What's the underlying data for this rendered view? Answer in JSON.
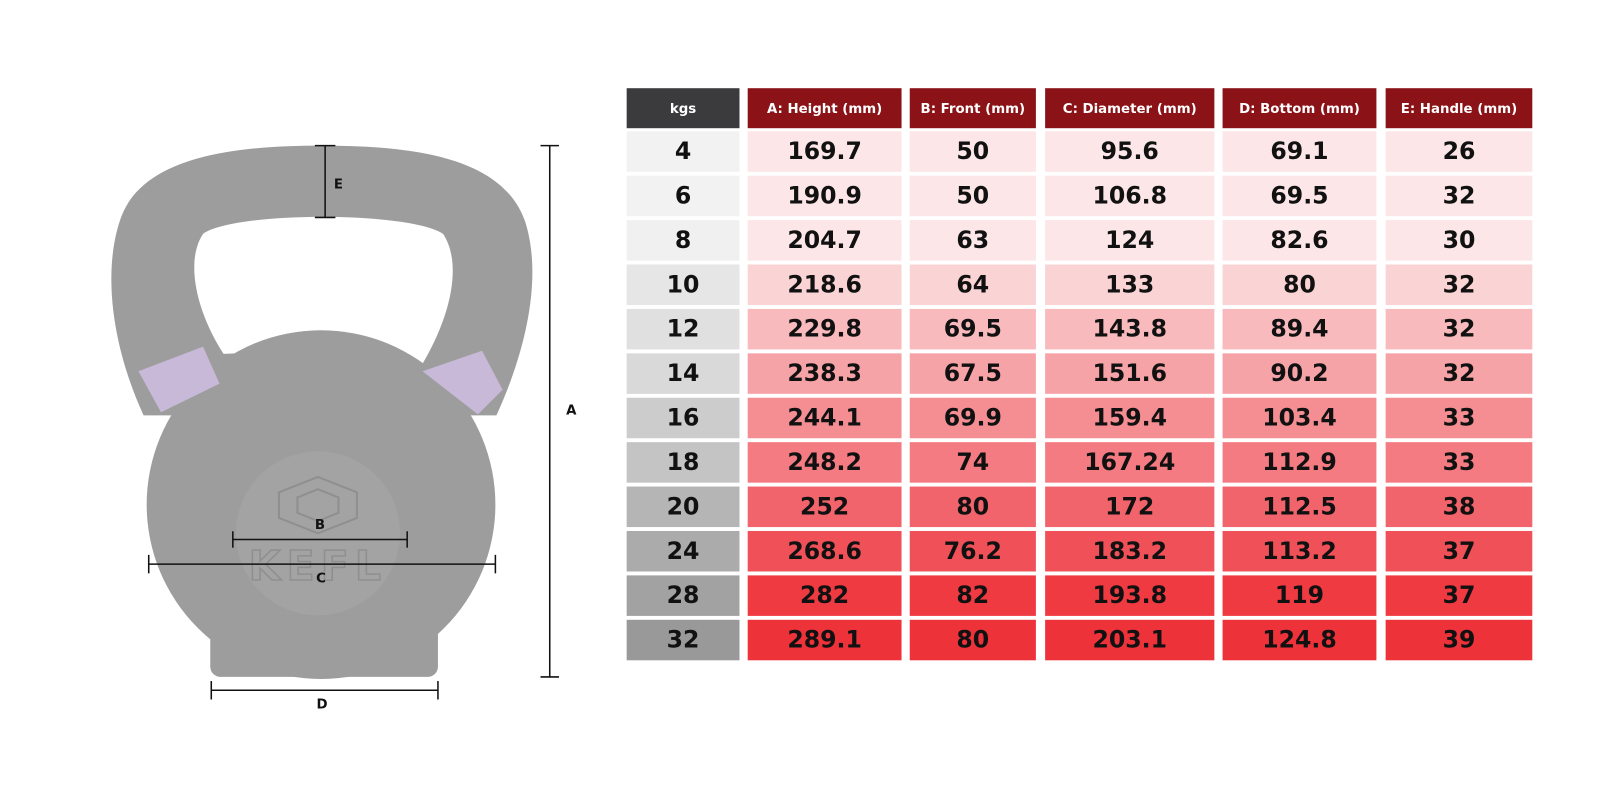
{
  "diagram": {
    "labels": {
      "a": "A",
      "b": "B",
      "c": "C",
      "d": "D",
      "e": "E"
    },
    "watermark": "KEFL"
  },
  "table": {
    "header": [
      "kgs",
      "A: Height (mm)",
      "B: Front (mm)",
      "C: Diameter (mm)",
      "D: Bottom (mm)",
      "E: Handle (mm)"
    ],
    "rows": [
      [
        4,
        169.7,
        50,
        95.6,
        69.1,
        26
      ],
      [
        6,
        190.9,
        50,
        106.8,
        69.5,
        32
      ],
      [
        8,
        204.7,
        63,
        124,
        82.6,
        30
      ],
      [
        10,
        218.6,
        64,
        133,
        80,
        32
      ],
      [
        12,
        229.8,
        69.5,
        143.8,
        89.4,
        32
      ],
      [
        14,
        238.3,
        67.5,
        151.6,
        90.2,
        32
      ],
      [
        16,
        244.1,
        69.9,
        159.4,
        103.4,
        33
      ],
      [
        18,
        248.2,
        74,
        167.24,
        112.9,
        33
      ],
      [
        20,
        252,
        80,
        172,
        112.5,
        38
      ],
      [
        24,
        268.6,
        76.2,
        183.2,
        113.2,
        37
      ],
      [
        28,
        282,
        82,
        193.8,
        119,
        37
      ],
      [
        32,
        289.1,
        80,
        203.1,
        124.8,
        39
      ]
    ]
  }
}
